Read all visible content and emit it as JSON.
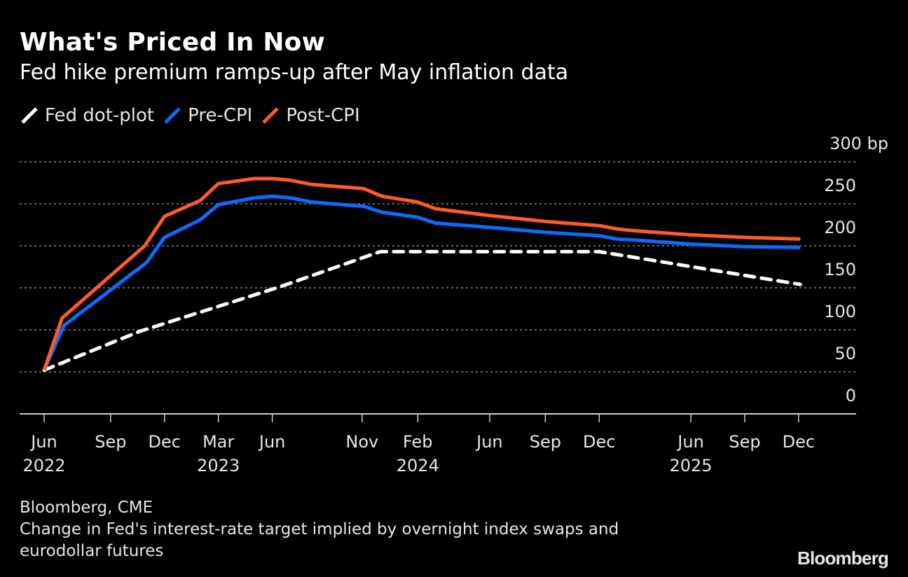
{
  "header": {
    "title": "What's Priced In Now",
    "subtitle": "Fed hike premium ramps-up after May inflation data"
  },
  "legend": [
    {
      "label": "Fed dot-plot",
      "color": "#ffffff",
      "style": "dashed"
    },
    {
      "label": "Pre-CPI",
      "color": "#0a6cff",
      "style": "solid"
    },
    {
      "label": "Post-CPI",
      "color": "#ff5a2a",
      "style": "solid"
    }
  ],
  "footer": {
    "source": "Bloomberg, CME",
    "note_line1": "Change in Fed's interest-rate target implied by overnight index swaps and",
    "note_line2": "eurodollar futures",
    "brand": "Bloomberg"
  },
  "chart_data": {
    "type": "line",
    "title": "What's Priced In Now",
    "subtitle": "Fed hike premium ramps-up after May inflation data",
    "xlabel": "",
    "ylabel": "bp",
    "x_units": "months since Jun 2022",
    "xlim": [
      -1.4,
      45.2
    ],
    "ylim": [
      0,
      300
    ],
    "y_ticks": [
      {
        "value": 0,
        "label": "0"
      },
      {
        "value": 50,
        "label": "50"
      },
      {
        "value": 100,
        "label": "100"
      },
      {
        "value": 150,
        "label": "150"
      },
      {
        "value": 200,
        "label": "200"
      },
      {
        "value": 250,
        "label": "250"
      },
      {
        "value": 300,
        "label": "300 bp"
      }
    ],
    "x_ticks": [
      {
        "x": 0,
        "label": "Jun",
        "year": "2022"
      },
      {
        "x": 3.7,
        "label": "Sep",
        "year": ""
      },
      {
        "x": 6.7,
        "label": "Dec",
        "year": ""
      },
      {
        "x": 9.7,
        "label": "Mar",
        "year": "2023"
      },
      {
        "x": 12.7,
        "label": "Jun",
        "year": ""
      },
      {
        "x": 17.7,
        "label": "Nov",
        "year": ""
      },
      {
        "x": 20.8,
        "label": "Feb",
        "year": "2024"
      },
      {
        "x": 24.8,
        "label": "Jun",
        "year": ""
      },
      {
        "x": 27.9,
        "label": "Sep",
        "year": ""
      },
      {
        "x": 30.9,
        "label": "Dec",
        "year": ""
      },
      {
        "x": 36.0,
        "label": "Jun",
        "year": "2025"
      },
      {
        "x": 39.0,
        "label": "Sep",
        "year": ""
      },
      {
        "x": 42.0,
        "label": "Dec",
        "year": ""
      }
    ],
    "grid": true,
    "legend_position": "top-left",
    "series": [
      {
        "name": "Fed dot-plot",
        "color": "#ffffff",
        "dashed": true,
        "points": [
          [
            0,
            52
          ],
          [
            5.3,
            98
          ],
          [
            13.1,
            151
          ],
          [
            18.7,
            193
          ],
          [
            30.9,
            193
          ],
          [
            42.1,
            154
          ]
        ]
      },
      {
        "name": "Pre-CPI",
        "color": "#0a6cff",
        "dashed": false,
        "points": [
          [
            0,
            52
          ],
          [
            1.1,
            105
          ],
          [
            5.7,
            180
          ],
          [
            6.7,
            210
          ],
          [
            8.7,
            231
          ],
          [
            9.7,
            249
          ],
          [
            11.7,
            257
          ],
          [
            12.7,
            259
          ],
          [
            13.7,
            257
          ],
          [
            14.9,
            252
          ],
          [
            17.8,
            247
          ],
          [
            18.8,
            240
          ],
          [
            20.8,
            234
          ],
          [
            21.8,
            227
          ],
          [
            24.8,
            222
          ],
          [
            27.9,
            216
          ],
          [
            30.9,
            212
          ],
          [
            31.9,
            208
          ],
          [
            32.8,
            207
          ],
          [
            36.0,
            202
          ],
          [
            39.0,
            199
          ],
          [
            42.1,
            198
          ]
        ]
      },
      {
        "name": "Post-CPI",
        "color": "#ff5a2a",
        "dashed": false,
        "points": [
          [
            0,
            52
          ],
          [
            1.0,
            114
          ],
          [
            5.6,
            200
          ],
          [
            6.7,
            235
          ],
          [
            8.7,
            254
          ],
          [
            9.7,
            274
          ],
          [
            11.7,
            280
          ],
          [
            12.7,
            280
          ],
          [
            13.7,
            278
          ],
          [
            14.9,
            273
          ],
          [
            17.8,
            268
          ],
          [
            18.8,
            259
          ],
          [
            20.8,
            252
          ],
          [
            21.8,
            244
          ],
          [
            24.8,
            236
          ],
          [
            27.9,
            229
          ],
          [
            30.9,
            224
          ],
          [
            31.9,
            220
          ],
          [
            32.8,
            218
          ],
          [
            36.0,
            213
          ],
          [
            39.0,
            210
          ],
          [
            42.1,
            208
          ]
        ]
      }
    ]
  }
}
